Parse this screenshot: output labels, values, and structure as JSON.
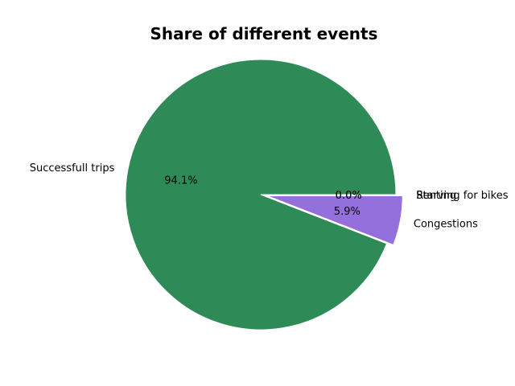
{
  "chart_data": {
    "type": "pie",
    "title": "Share of different events",
    "slices": [
      {
        "label": "Successfull trips",
        "value": 94.1,
        "pct_label": "94.1%",
        "color": "#2e8b57",
        "explode": 0
      },
      {
        "label": "Congestions",
        "value": 5.9,
        "pct_label": "5.9%",
        "color": "#9370db",
        "explode": 0.05
      },
      {
        "label": "Starving for bikes",
        "value": 0.0,
        "pct_label": "0.0%",
        "color": "#4682b4",
        "explode": 0.05
      },
      {
        "label": "Renting",
        "value": 0.0,
        "pct_label": "0.0%",
        "color": "#cd5c5c",
        "explode": 0.05
      }
    ],
    "legend": "none"
  }
}
